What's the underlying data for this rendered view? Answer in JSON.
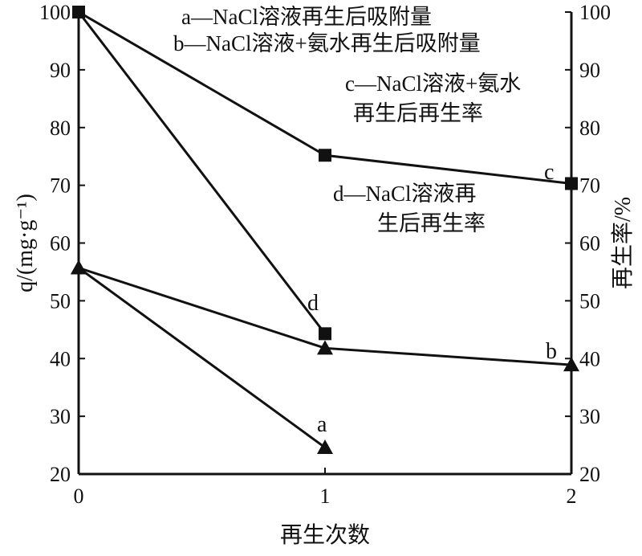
{
  "chart_data": {
    "type": "line",
    "xlabel": "再生次数",
    "ylabel_left": "q/(mg·g⁻¹)",
    "ylabel_right": "再生率/%",
    "x_ticks": [
      "0",
      "1",
      "2"
    ],
    "xlim": [
      0,
      2
    ],
    "ylim": [
      20,
      100
    ],
    "y_ticks": [
      "20",
      "30",
      "40",
      "50",
      "60",
      "70",
      "80",
      "90",
      "100"
    ],
    "grid": false,
    "legend": [
      "a—NaCl溶液再生后吸附量",
      "b—NaCl溶液+氨水再生后吸附量",
      "c—NaCl溶液+氨水",
      "再生后再生率",
      "d—NaCl溶液再",
      "生后再生率"
    ],
    "legend_placement": "top-right",
    "series": [
      {
        "name": "a",
        "marker": "triangle",
        "x": [
          0,
          1
        ],
        "y": [
          55.7,
          24.6
        ]
      },
      {
        "name": "b",
        "marker": "triangle",
        "x": [
          0,
          1,
          2
        ],
        "y": [
          55.7,
          41.8,
          38.9
        ]
      },
      {
        "name": "c",
        "marker": "square",
        "x": [
          0,
          1,
          2
        ],
        "y": [
          100,
          75.2,
          70.3
        ]
      },
      {
        "name": "d",
        "marker": "square",
        "x": [
          0,
          1
        ],
        "y": [
          100,
          44.3
        ]
      }
    ],
    "color": "#111111"
  }
}
